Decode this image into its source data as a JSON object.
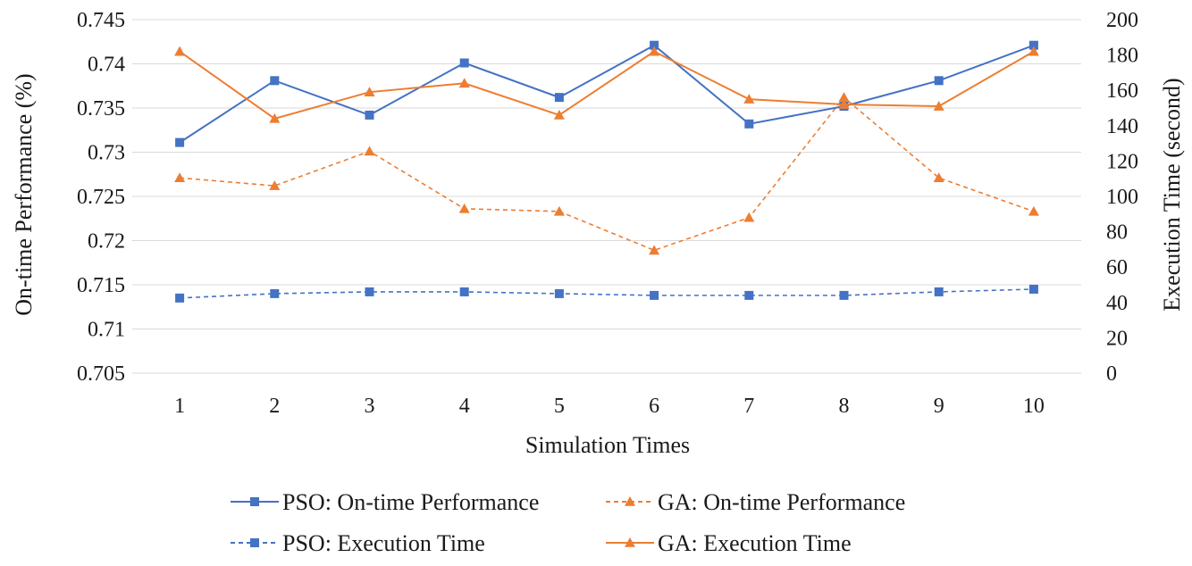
{
  "chart_data": {
    "type": "line",
    "title": "",
    "xlabel": "Simulation Times",
    "ylabel": "On-time Performance (%)",
    "y2label": "Execution Time (second)",
    "categories": [
      "1",
      "2",
      "3",
      "4",
      "5",
      "6",
      "7",
      "8",
      "9",
      "10"
    ],
    "ylim": [
      0.705,
      0.745
    ],
    "y_ticks": [
      "0.705",
      "0.71",
      "0.715",
      "0.72",
      "0.725",
      "0.73",
      "0.735",
      "0.74",
      "0.745"
    ],
    "y2lim": [
      0,
      200
    ],
    "y2_ticks": [
      "0",
      "20",
      "40",
      "60",
      "80",
      "100",
      "120",
      "140",
      "160",
      "180",
      "200"
    ],
    "grid": true,
    "legend_position": "bottom",
    "series": [
      {
        "name": "PSO: On-time Performance",
        "axis": "left",
        "color": "#4472c4",
        "dashed": false,
        "marker": "square",
        "values": [
          0.7311,
          0.7381,
          0.7342,
          0.7401,
          0.7362,
          0.7421,
          0.7332,
          0.7352,
          0.7381,
          0.7421
        ]
      },
      {
        "name": "GA: On-time Performance",
        "axis": "left",
        "color": "#ed7d31",
        "dashed": true,
        "marker": "triangle",
        "values": [
          0.7271,
          0.7262,
          0.7301,
          0.7236,
          0.7233,
          0.7189,
          0.7226,
          0.7362,
          0.7271,
          0.7233
        ]
      },
      {
        "name": "PSO: Execution Time",
        "axis": "right",
        "color": "#4472c4",
        "dashed": true,
        "marker": "square",
        "values": [
          42.5,
          45,
          46,
          46,
          45,
          44,
          44,
          44,
          46,
          47.5
        ]
      },
      {
        "name": "GA: Execution Time",
        "axis": "right",
        "color": "#ed7d31",
        "dashed": false,
        "marker": "triangle",
        "values": [
          182,
          144,
          159,
          164,
          146,
          182,
          155,
          152,
          151,
          182
        ]
      }
    ]
  }
}
